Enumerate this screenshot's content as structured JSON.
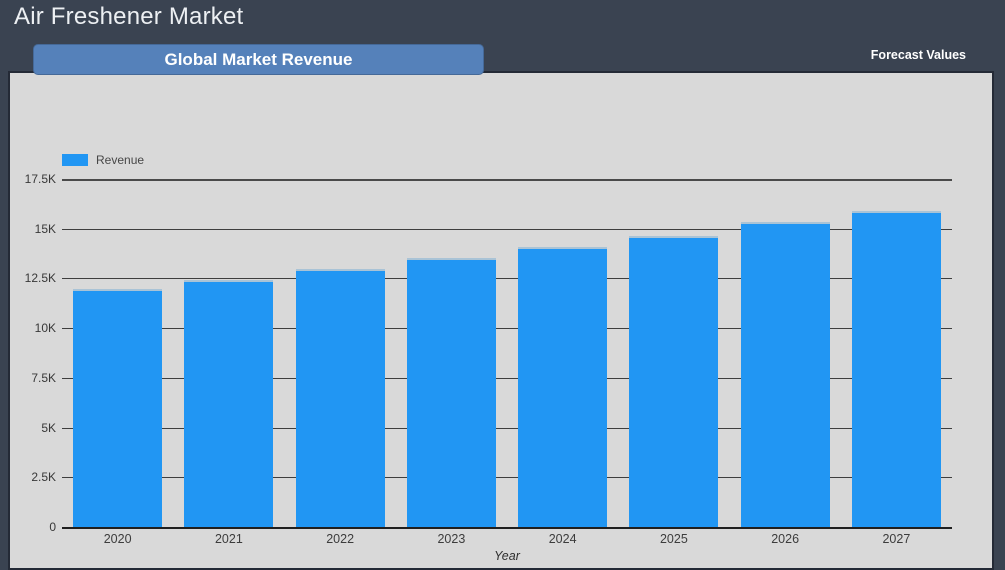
{
  "header": {
    "title": "Air Freshener Market",
    "tab_label": "Global Market Revenue",
    "forecast_label": "Forecast Values"
  },
  "legend": {
    "label": "Revenue"
  },
  "chart_data": {
    "type": "bar",
    "title": "Global Market Revenue",
    "xlabel": "Year",
    "ylabel": "",
    "categories": [
      "2020",
      "2021",
      "2022",
      "2023",
      "2024",
      "2025",
      "2026",
      "2027"
    ],
    "series": [
      {
        "name": "Revenue",
        "values": [
          11950,
          12430,
          12980,
          13550,
          14060,
          14620,
          15330,
          15900
        ]
      }
    ],
    "ylim": [
      0,
      17500
    ],
    "yticks": [
      {
        "value": 0,
        "label": "0"
      },
      {
        "value": 2500,
        "label": "2.5K"
      },
      {
        "value": 5000,
        "label": "5K"
      },
      {
        "value": 7500,
        "label": "7.5K"
      },
      {
        "value": 10000,
        "label": "10K"
      },
      {
        "value": 12500,
        "label": "12.5K"
      },
      {
        "value": 15000,
        "label": "15K"
      },
      {
        "value": 17500,
        "label": "17.5K"
      }
    ],
    "grid": true,
    "legend_position": "top-left",
    "bar_color": "#2196f3"
  },
  "colors": {
    "bg": "#3a4351",
    "panel": "#d9d9d9",
    "panel_border": "#242a36",
    "accent": "#5581ba",
    "bar": "#2196f3",
    "grid": "#3e3e3e",
    "text_light": "#edf0f3"
  }
}
